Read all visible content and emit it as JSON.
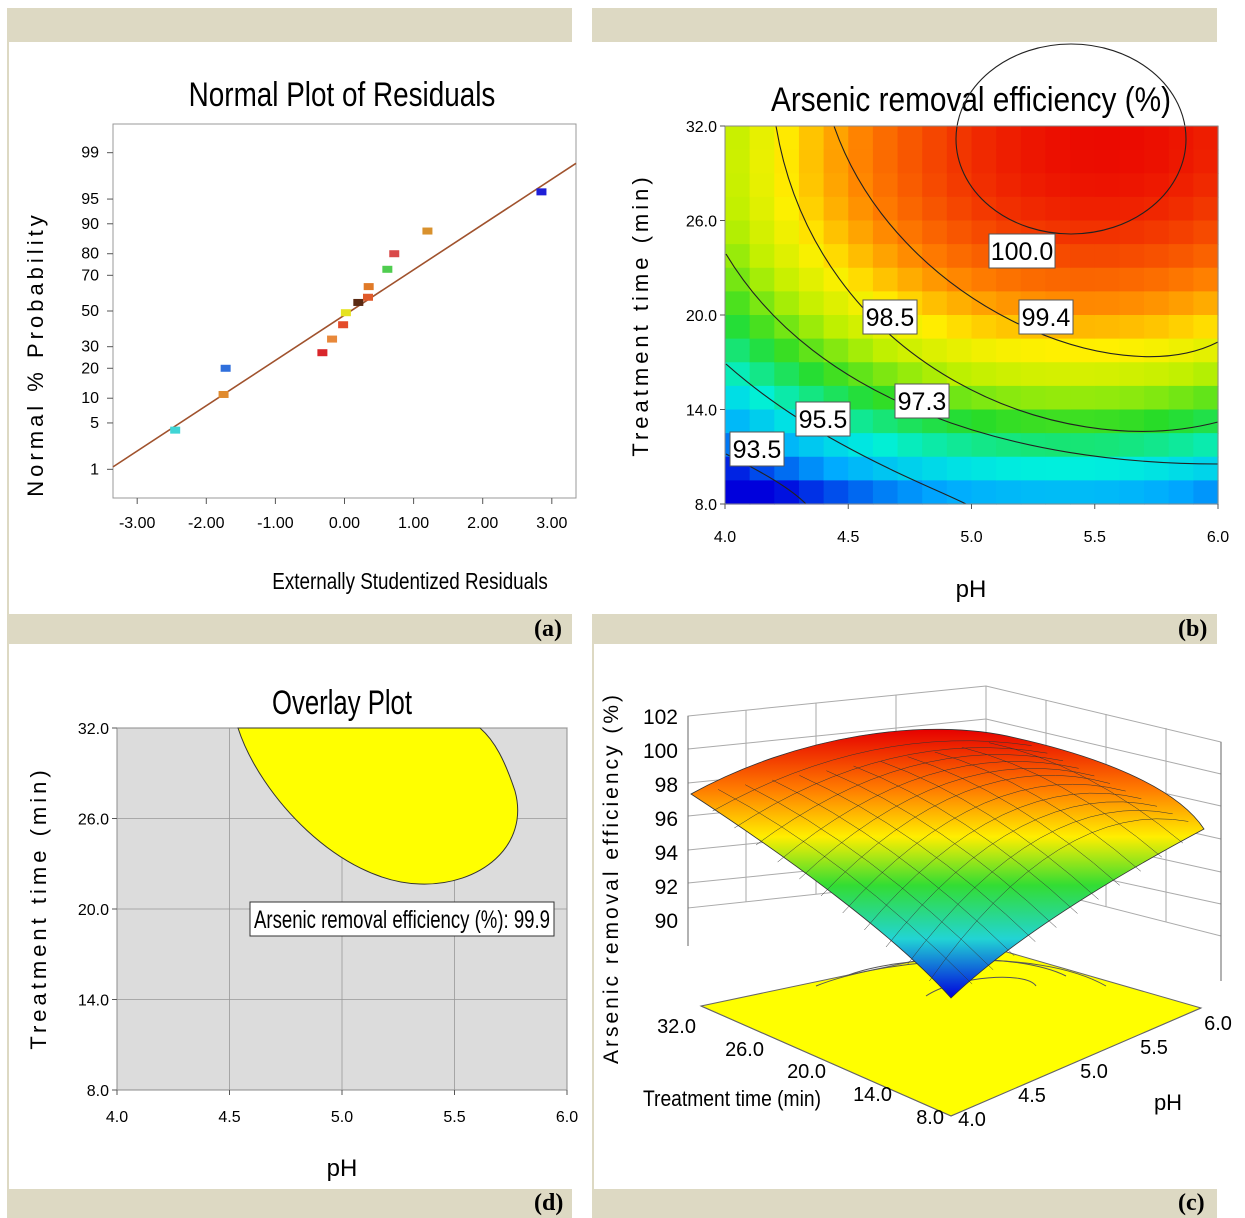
{
  "panels": {
    "a": {
      "letter": "(a)"
    },
    "b": {
      "letter": "(b)"
    },
    "c": {
      "letter": "(c)"
    },
    "d": {
      "letter": "(d)"
    }
  },
  "chart_data": [
    {
      "id": "a",
      "type": "scatter",
      "title": "Normal Plot of Residuals",
      "xlabel": "Externally Studentized Residuals",
      "ylabel": "Normal % Probability",
      "x_ticks": [
        "-3.00",
        "-2.00",
        "-1.00",
        "0.00",
        "1.00",
        "2.00",
        "3.00"
      ],
      "y_ticks": [
        "1",
        "5",
        "10",
        "20",
        "30",
        "50",
        "70",
        "80",
        "90",
        "95",
        "99"
      ],
      "xlim": [
        -3.35,
        3.35
      ],
      "line": {
        "x": [
          -3.35,
          3.35
        ],
        "y": [
          1.1,
          98.5
        ],
        "color": "#a0522d"
      },
      "points": [
        {
          "x": -2.45,
          "y": 4,
          "color": "#3fd5d5"
        },
        {
          "x": -1.75,
          "y": 11,
          "color": "#e08a2e"
        },
        {
          "x": -1.72,
          "y": 20,
          "color": "#2f6fdc"
        },
        {
          "x": -0.32,
          "y": 27,
          "color": "#d9262b"
        },
        {
          "x": -0.18,
          "y": 34,
          "color": "#e8883a"
        },
        {
          "x": -0.02,
          "y": 42,
          "color": "#e44b2a"
        },
        {
          "x": 0.02,
          "y": 49,
          "color": "#e6e21e"
        },
        {
          "x": 0.2,
          "y": 55,
          "color": "#5b2a12"
        },
        {
          "x": 0.34,
          "y": 58,
          "color": "#e05a2a"
        },
        {
          "x": 0.35,
          "y": 64,
          "color": "#e07a28"
        },
        {
          "x": 0.62,
          "y": 73,
          "color": "#4fcd4f"
        },
        {
          "x": 0.72,
          "y": 80,
          "color": "#d94a4a"
        },
        {
          "x": 1.2,
          "y": 88,
          "color": "#d9912d"
        },
        {
          "x": 2.85,
          "y": 96,
          "color": "#1e1ed8"
        }
      ]
    },
    {
      "id": "b",
      "type": "heatmap",
      "title": "Arsenic removal efficiency (%)",
      "xlabel": "pH",
      "ylabel": "Treatment time (min)",
      "x_ticks": [
        "4.0",
        "4.5",
        "5.0",
        "5.5",
        "6.0"
      ],
      "y_ticks": [
        "8.0",
        "14.0",
        "20.0",
        "26.0",
        "32.0"
      ],
      "xlim": [
        4.0,
        6.0
      ],
      "ylim": [
        8.0,
        32.0
      ],
      "contour_labels": [
        "100.0",
        "99.4",
        "98.5",
        "97.3",
        "95.5",
        "93.5"
      ]
    },
    {
      "id": "d",
      "type": "overlay",
      "title": "Overlay Plot",
      "xlabel": "pH",
      "ylabel": "Treatment time (min)",
      "x_ticks": [
        "4.0",
        "4.5",
        "5.0",
        "5.5",
        "6.0"
      ],
      "y_ticks": [
        "8.0",
        "14.0",
        "20.0",
        "26.0",
        "32.0"
      ],
      "xlim": [
        4.0,
        6.0
      ],
      "ylim": [
        8.0,
        32.0
      ],
      "region_color": "#ffff00",
      "annotation": "Arsenic removal efficiency (%): 99.9"
    },
    {
      "id": "c",
      "type": "surface",
      "zlabel": "Arsenic removal efficiency (%)",
      "z_ticks": [
        "90",
        "92",
        "94",
        "96",
        "98",
        "100",
        "102"
      ],
      "time_label": "Treatment time (min)",
      "time_ticks": [
        "32.0",
        "26.0",
        "20.0",
        "14.0",
        "8.0"
      ],
      "ph_label": "pH",
      "ph_ticks": [
        "4.0",
        "4.5",
        "5.0",
        "5.5",
        "6.0"
      ]
    }
  ]
}
